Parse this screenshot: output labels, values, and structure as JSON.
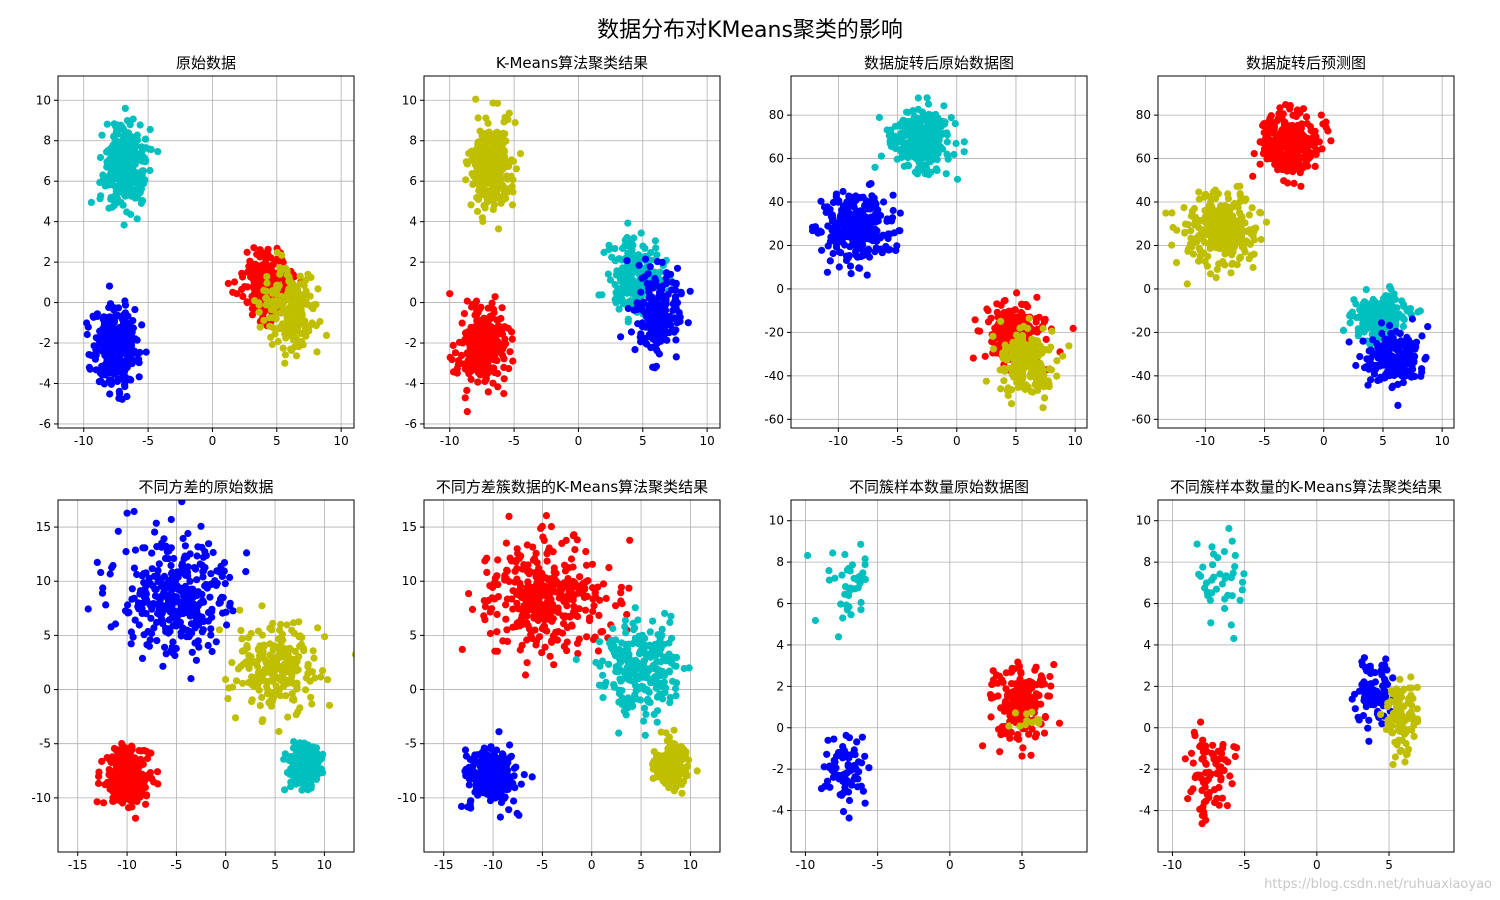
{
  "figure": {
    "title": "数据分布对KMeans聚类的影响",
    "watermark": "https://blog.csdn.net/ruhuaxiaoyao"
  },
  "colors": {
    "b": "#0000ff",
    "r": "#ff0000",
    "c": "#00bfbf",
    "y": "#bfbf00",
    "grid": "#b0b0b0"
  },
  "chart_data": [
    {
      "type": "scatter",
      "title": "原始数据",
      "xlim": [
        -12,
        11
      ],
      "ylim": [
        -6.2,
        11.2
      ],
      "xticks": [
        -10,
        -5,
        0,
        5,
        10
      ],
      "yticks": [
        -6,
        -4,
        -2,
        0,
        2,
        4,
        6,
        8,
        10
      ],
      "grid": true,
      "clusters": [
        {
          "color": "b",
          "center": [
            -7.5,
            -2.2
          ],
          "spread": [
            0.9,
            1.0
          ],
          "count": 300
        },
        {
          "color": "c",
          "center": [
            -6.8,
            6.8
          ],
          "spread": [
            0.8,
            1.0
          ],
          "count": 300
        },
        {
          "color": "r",
          "center": [
            4.2,
            0.9
          ],
          "spread": [
            1.0,
            0.8
          ],
          "count": 220
        },
        {
          "color": "y",
          "center": [
            6.0,
            -0.4
          ],
          "spread": [
            1.0,
            1.0
          ],
          "count": 200
        }
      ]
    },
    {
      "type": "scatter",
      "title": "K-Means算法聚类结果",
      "xlim": [
        -12,
        11
      ],
      "ylim": [
        -6.2,
        11.2
      ],
      "xticks": [
        -10,
        -5,
        0,
        5,
        10
      ],
      "yticks": [
        -6,
        -4,
        -2,
        0,
        2,
        4,
        6,
        8,
        10
      ],
      "grid": true,
      "clusters": [
        {
          "color": "r",
          "center": [
            -7.5,
            -2.2
          ],
          "spread": [
            0.9,
            1.0
          ],
          "count": 300
        },
        {
          "color": "y",
          "center": [
            -6.8,
            6.8
          ],
          "spread": [
            0.8,
            1.0
          ],
          "count": 300
        },
        {
          "color": "c",
          "center": [
            4.3,
            1.3
          ],
          "spread": [
            1.0,
            0.9
          ],
          "count": 220
        },
        {
          "color": "b",
          "center": [
            6.2,
            -0.5
          ],
          "spread": [
            0.9,
            1.0
          ],
          "count": 200
        }
      ]
    },
    {
      "type": "scatter",
      "title": "数据旋转后原始数据图",
      "xlim": [
        -14,
        11
      ],
      "ylim": [
        -64,
        98
      ],
      "xticks": [
        -10,
        -5,
        0,
        5,
        10
      ],
      "yticks": [
        -60,
        -40,
        -20,
        0,
        20,
        40,
        60,
        80
      ],
      "grid": true,
      "clusters": [
        {
          "color": "b",
          "center": [
            -8.5,
            28
          ],
          "spread": [
            1.5,
            8
          ],
          "count": 300
        },
        {
          "color": "c",
          "center": [
            -3,
            67
          ],
          "spread": [
            1.3,
            7
          ],
          "count": 300
        },
        {
          "color": "r",
          "center": [
            5,
            -20
          ],
          "spread": [
            1.2,
            7
          ],
          "count": 220
        },
        {
          "color": "y",
          "center": [
            6,
            -33
          ],
          "spread": [
            1.1,
            7
          ],
          "count": 200
        }
      ]
    },
    {
      "type": "scatter",
      "title": "数据旋转后预测图",
      "xlim": [
        -14,
        11
      ],
      "ylim": [
        -64,
        98
      ],
      "xticks": [
        -10,
        -5,
        0,
        5,
        10
      ],
      "yticks": [
        -60,
        -40,
        -20,
        0,
        20,
        40,
        60,
        80
      ],
      "grid": true,
      "clusters": [
        {
          "color": "y",
          "center": [
            -8.5,
            28
          ],
          "spread": [
            1.5,
            8
          ],
          "count": 300
        },
        {
          "color": "r",
          "center": [
            -3,
            67
          ],
          "spread": [
            1.3,
            7
          ],
          "count": 300
        },
        {
          "color": "c",
          "center": [
            4.5,
            -13
          ],
          "spread": [
            1.1,
            5
          ],
          "count": 220
        },
        {
          "color": "b",
          "center": [
            6,
            -32
          ],
          "spread": [
            1.2,
            6
          ],
          "count": 200
        }
      ]
    },
    {
      "type": "scatter",
      "title": "不同方差的原始数据",
      "xlim": [
        -17,
        13
      ],
      "ylim": [
        -15,
        17.5
      ],
      "xticks": [
        -15,
        -10,
        -5,
        0,
        5,
        10
      ],
      "yticks": [
        -10,
        -5,
        0,
        5,
        10,
        15
      ],
      "grid": true,
      "clusters": [
        {
          "color": "b",
          "center": [
            -5,
            8.5
          ],
          "spread": [
            3.0,
            2.6
          ],
          "count": 350
        },
        {
          "color": "y",
          "center": [
            5,
            2
          ],
          "spread": [
            2.0,
            2.0
          ],
          "count": 250
        },
        {
          "color": "r",
          "center": [
            -10,
            -8
          ],
          "spread": [
            1.2,
            1.3
          ],
          "count": 250
        },
        {
          "color": "c",
          "center": [
            8,
            -7
          ],
          "spread": [
            0.8,
            1.0
          ],
          "count": 200
        }
      ]
    },
    {
      "type": "scatter",
      "title": "不同方差簇数据的K-Means算法聚类结果",
      "xlim": [
        -17,
        13
      ],
      "ylim": [
        -15,
        17.5
      ],
      "xticks": [
        -15,
        -10,
        -5,
        0,
        5,
        10
      ],
      "yticks": [
        -10,
        -5,
        0,
        5,
        10,
        15
      ],
      "grid": true,
      "clusters": [
        {
          "color": "r",
          "center": [
            -5,
            8.5
          ],
          "spread": [
            3.0,
            2.6
          ],
          "count": 350
        },
        {
          "color": "c",
          "center": [
            5,
            2
          ],
          "spread": [
            2.0,
            2.0
          ],
          "count": 250
        },
        {
          "color": "b",
          "center": [
            -10,
            -8
          ],
          "spread": [
            1.2,
            1.3
          ],
          "count": 250
        },
        {
          "color": "y",
          "center": [
            8,
            -7
          ],
          "spread": [
            0.8,
            1.0
          ],
          "count": 200
        }
      ]
    },
    {
      "type": "scatter",
      "title": "不同簇样本数量原始数据图",
      "xlim": [
        -11,
        9.5
      ],
      "ylim": [
        -6,
        11
      ],
      "xticks": [
        -10,
        -5,
        0,
        5
      ],
      "yticks": [
        -4,
        -2,
        0,
        2,
        4,
        6,
        8,
        10
      ],
      "grid": true,
      "clusters": [
        {
          "color": "c",
          "center": [
            -6.8,
            7
          ],
          "spread": [
            0.9,
            1.0
          ],
          "count": 40
        },
        {
          "color": "b",
          "center": [
            -7.5,
            -2.2
          ],
          "spread": [
            0.8,
            1.0
          ],
          "count": 80
        },
        {
          "color": "r",
          "center": [
            4.8,
            1.2
          ],
          "spread": [
            1.0,
            0.9
          ],
          "count": 200
        },
        {
          "color": "y",
          "center": [
            5.4,
            0.4
          ],
          "spread": [
            0.7,
            0.6
          ],
          "count": 12
        }
      ]
    },
    {
      "type": "scatter",
      "title": "不同簇样本数量的K-Means算法聚类结果",
      "xlim": [
        -11,
        9.5
      ],
      "ylim": [
        -6,
        11
      ],
      "xticks": [
        -10,
        -5,
        0,
        5
      ],
      "yticks": [
        -4,
        -2,
        0,
        2,
        4,
        6,
        8,
        10
      ],
      "grid": true,
      "clusters": [
        {
          "color": "c",
          "center": [
            -6.8,
            7
          ],
          "spread": [
            0.9,
            1.0
          ],
          "count": 40
        },
        {
          "color": "r",
          "center": [
            -7.5,
            -2.2
          ],
          "spread": [
            0.8,
            1.0
          ],
          "count": 80
        },
        {
          "color": "b",
          "center": [
            4.0,
            1.6
          ],
          "spread": [
            0.6,
            0.8
          ],
          "count": 100
        },
        {
          "color": "y",
          "center": [
            5.8,
            0.4
          ],
          "spread": [
            0.6,
            1.0
          ],
          "count": 100
        }
      ]
    }
  ]
}
